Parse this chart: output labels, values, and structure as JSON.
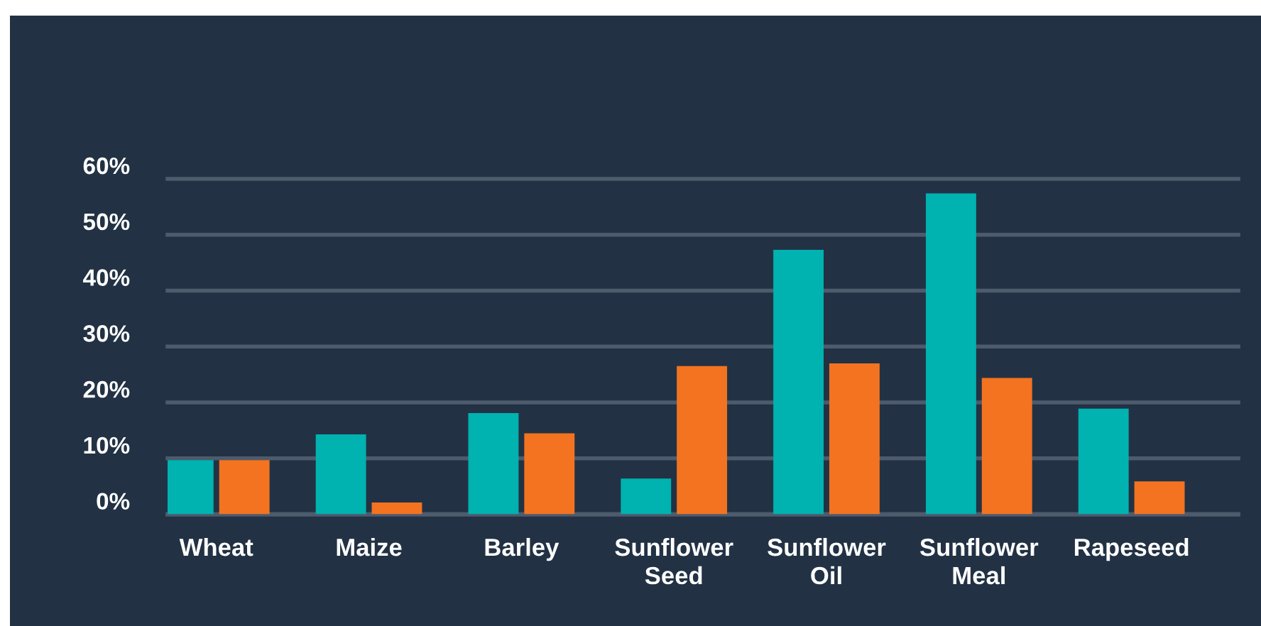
{
  "chart_data": {
    "type": "bar",
    "categories": [
      "Wheat",
      "Maize",
      "Barley",
      "Sunflower Seed",
      "Sunflower Oil",
      "Sunflower Meal",
      "Rapeseed"
    ],
    "series": [
      {
        "color": "#00b2b0",
        "values": [
          9.7,
          14.3,
          18.1,
          6.4,
          47.3,
          57.4,
          18.9
        ]
      },
      {
        "color": "#f37321",
        "values": [
          9.7,
          2.1,
          14.5,
          26.5,
          27.0,
          24.4,
          5.9
        ]
      }
    ],
    "ylim": [
      0,
      60
    ],
    "yticks": [
      {
        "value": 0,
        "label": "0%"
      },
      {
        "value": 10,
        "label": "10%"
      },
      {
        "value": 20,
        "label": "20%"
      },
      {
        "value": 30,
        "label": "30%"
      },
      {
        "value": 40,
        "label": "40%"
      },
      {
        "value": 50,
        "label": "50%"
      },
      {
        "value": 60,
        "label": "60%"
      }
    ],
    "grid": "y"
  }
}
